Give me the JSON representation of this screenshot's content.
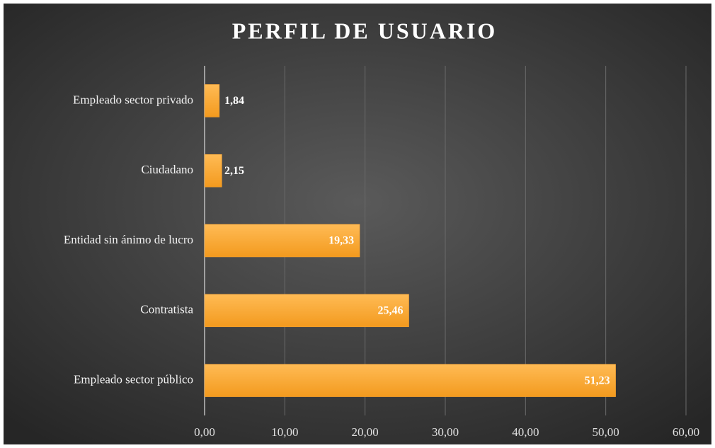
{
  "chart_data": {
    "type": "bar",
    "orientation": "horizontal",
    "title": "PERFIL DE USUARIO",
    "categories": [
      "Empleado sector privado",
      "Ciudadano",
      "Entidad sin ánimo de lucro",
      "Contratista",
      "Empleado sector público"
    ],
    "values": [
      1.84,
      2.15,
      19.33,
      25.46,
      51.23
    ],
    "value_labels": [
      "1,84",
      "2,15",
      "19,33",
      "25,46",
      "51,23"
    ],
    "color": "#f9a330",
    "xlim": [
      0,
      60
    ],
    "xticks": [
      {
        "value": 0,
        "label": "0,00"
      },
      {
        "value": 10,
        "label": "10,00"
      },
      {
        "value": 20,
        "label": "20,00"
      },
      {
        "value": 30,
        "label": "30,00"
      },
      {
        "value": 40,
        "label": "40,00"
      },
      {
        "value": 50,
        "label": "50,00"
      },
      {
        "value": 60,
        "label": "60,00"
      }
    ],
    "grid": true
  }
}
